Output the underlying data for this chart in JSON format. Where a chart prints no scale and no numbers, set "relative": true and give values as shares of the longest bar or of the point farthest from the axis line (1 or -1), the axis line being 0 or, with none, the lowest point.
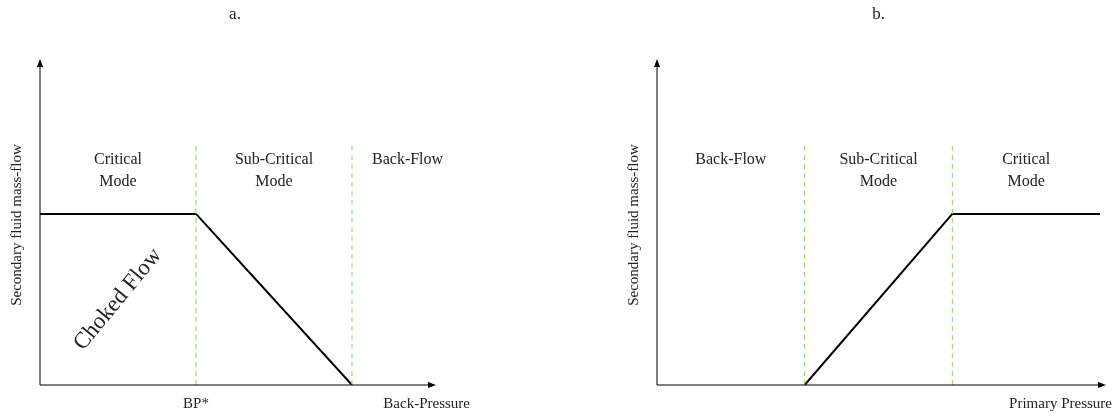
{
  "chart_data": [
    {
      "type": "line",
      "title": "a.",
      "xlabel": "Back-Pressure",
      "ylabel": "Secondary fluid mass-flow",
      "relative": true,
      "marker": "none",
      "categories": [
        null,
        null,
        null
      ],
      "series": [
        {
          "color": "#000000",
          "values": [
            1,
            1,
            0
          ]
        }
      ],
      "annotations": [
        "Critical Mode",
        "Sub-Critical Mode",
        "Back-Flow",
        "Choked Flow",
        {
          "text": "BP*"
        }
      ]
    },
    {
      "type": "line",
      "title": "b.",
      "xlabel": "Primary Pressure",
      "ylabel": "Secondary fluid mass-flow",
      "relative": true,
      "marker": "none",
      "categories": [
        null,
        null,
        null,
        null
      ],
      "series": [
        {
          "color": "#000000",
          "values": [
            null,
            0,
            1,
            1
          ]
        }
      ],
      "annotations": [
        "Back-Flow",
        "Sub-Critical Mode",
        "Critical Mode"
      ]
    }
  ]
}
